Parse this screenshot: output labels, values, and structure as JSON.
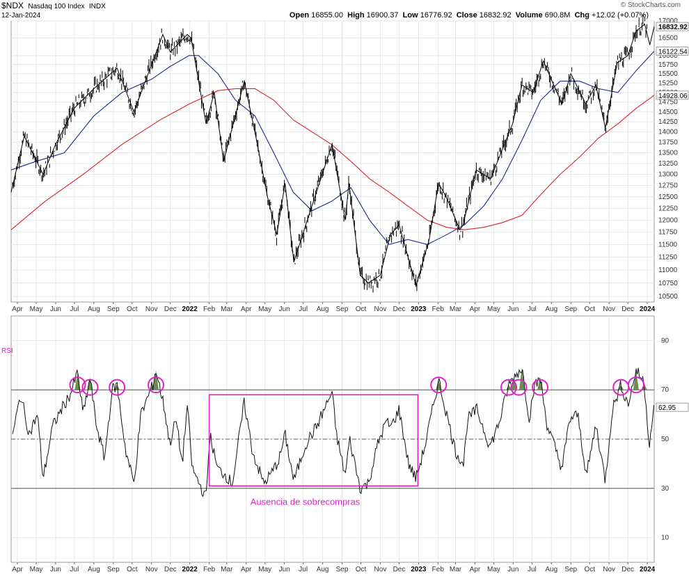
{
  "header": {
    "symbol": "$NDX",
    "name": "Nasdaq 100 Index",
    "exchange": "INDX",
    "date": "12-Jan-2024",
    "brand": "© StockCharts.com",
    "open_label": "Open",
    "open": "16855.00",
    "high_label": "High",
    "high": "16900.37",
    "low_label": "Low",
    "low": "16776.92",
    "close_label": "Close",
    "close": "16832.92",
    "volume_label": "Volume",
    "volume": "690.8M",
    "chg_label": "Chg",
    "chg": "+12.02 (+0.07%)"
  },
  "colors": {
    "price": "#000000",
    "ma50": "#1c2a8a",
    "ma200": "#d8232a",
    "annotation": "#e020c8",
    "grid": "#e6e6e6",
    "fill_overbought": "#6b8e4e"
  },
  "annotation_text": "Ausencia de sobrecompras",
  "rsi_label": "RSI",
  "x_axis": {
    "labels": [
      "Apr",
      "May",
      "Jun",
      "Jul",
      "Aug",
      "Sep",
      "Oct",
      "Nov",
      "Dec",
      "2022",
      "Feb",
      "Mar",
      "Apr",
      "May",
      "Jun",
      "Jul",
      "Aug",
      "Sep",
      "Oct",
      "Nov",
      "Dec",
      "2023",
      "Feb",
      "Mar",
      "Apr",
      "May",
      "Jun",
      "Jul",
      "Aug",
      "Sep",
      "Oct",
      "Nov",
      "Dec",
      "2024"
    ],
    "bold": [
      "2022",
      "2023",
      "2024"
    ]
  },
  "chart_data": [
    {
      "type": "line",
      "title": "$NDX Nasdaq 100 Index INDX",
      "y_scale": "log",
      "ylim": [
        10400,
        17000
      ],
      "y_ticks": [
        "17000",
        "16500",
        "16000",
        "15750",
        "15500",
        "15250",
        "15000",
        "14750",
        "14500",
        "14250",
        "14000",
        "13750",
        "13500",
        "13250",
        "13000",
        "12750",
        "12500",
        "12250",
        "12000",
        "11750",
        "11500",
        "11250",
        "11000",
        "10750",
        "10500"
      ],
      "last_value_tags": [
        {
          "name": "close",
          "value": "16832.92"
        },
        {
          "name": "ma50",
          "value": "16122.54"
        },
        {
          "name": "ma200",
          "value": "14928.06"
        }
      ],
      "x_range": [
        "2021-03-22",
        "2024-01-12"
      ],
      "series": [
        {
          "name": "",
          "role": "price",
          "points": [
            [
              "2021-03-22",
              12600
            ],
            [
              "2021-04-12",
              13900
            ],
            [
              "2021-05-12",
              13000
            ],
            [
              "2021-06-01",
              13700
            ],
            [
              "2021-07-01",
              14600
            ],
            [
              "2021-08-01",
              15100
            ],
            [
              "2021-09-07",
              15650
            ],
            [
              "2021-10-04",
              14500
            ],
            [
              "2021-11-19",
              16600
            ],
            [
              "2021-12-01",
              16100
            ],
            [
              "2021-12-28",
              16600
            ],
            [
              "2022-01-03",
              16500
            ],
            [
              "2022-01-27",
              14200
            ],
            [
              "2022-02-09",
              15000
            ],
            [
              "2022-02-24",
              13300
            ],
            [
              "2022-03-29",
              15300
            ],
            [
              "2022-04-15",
              14000
            ],
            [
              "2022-05-05",
              12500
            ],
            [
              "2022-05-20",
              11700
            ],
            [
              "2022-06-02",
              12800
            ],
            [
              "2022-06-16",
              11150
            ],
            [
              "2022-07-05",
              11900
            ],
            [
              "2022-08-16",
              13700
            ],
            [
              "2022-09-06",
              12000
            ],
            [
              "2022-09-12",
              12800
            ],
            [
              "2022-09-30",
              10900
            ],
            [
              "2022-10-13",
              10750
            ],
            [
              "2022-11-01",
              10900
            ],
            [
              "2022-11-17",
              11700
            ],
            [
              "2022-12-01",
              11900
            ],
            [
              "2022-12-28",
              10700
            ],
            [
              "2023-01-18",
              11600
            ],
            [
              "2023-02-02",
              12800
            ],
            [
              "2023-02-14",
              12500
            ],
            [
              "2023-03-08",
              11800
            ],
            [
              "2023-03-13",
              11900
            ],
            [
              "2023-04-03",
              13100
            ],
            [
              "2023-04-26",
              12900
            ],
            [
              "2023-05-31",
              14200
            ],
            [
              "2023-06-15",
              15200
            ],
            [
              "2023-07-03",
              15000
            ],
            [
              "2023-07-19",
              15850
            ],
            [
              "2023-08-18",
              14700
            ],
            [
              "2023-09-01",
              15500
            ],
            [
              "2023-09-25",
              14700
            ],
            [
              "2023-10-11",
              15200
            ],
            [
              "2023-10-26",
              14100
            ],
            [
              "2023-11-14",
              15800
            ],
            [
              "2023-12-01",
              16000
            ],
            [
              "2023-12-14",
              16700
            ],
            [
              "2023-12-28",
              16900
            ],
            [
              "2024-01-05",
              16300
            ],
            [
              "2024-01-12",
              16832.92
            ]
          ]
        },
        {
          "name": "",
          "role": "ma50",
          "points": [
            [
              "2021-03-22",
              13100
            ],
            [
              "2021-05-01",
              13300
            ],
            [
              "2021-06-15",
              13500
            ],
            [
              "2021-08-01",
              14400
            ],
            [
              "2021-09-15",
              15000
            ],
            [
              "2021-11-01",
              15350
            ],
            [
              "2021-12-01",
              15700
            ],
            [
              "2021-12-31",
              16000
            ],
            [
              "2022-01-15",
              16000
            ],
            [
              "2022-02-15",
              15500
            ],
            [
              "2022-03-15",
              14800
            ],
            [
              "2022-04-15",
              14400
            ],
            [
              "2022-05-15",
              13500
            ],
            [
              "2022-06-15",
              12600
            ],
            [
              "2022-07-15",
              12200
            ],
            [
              "2022-08-15",
              12400
            ],
            [
              "2022-09-15",
              12700
            ],
            [
              "2022-10-15",
              12000
            ],
            [
              "2022-11-15",
              11500
            ],
            [
              "2022-12-15",
              11600
            ],
            [
              "2023-01-15",
              11500
            ],
            [
              "2023-02-15",
              11700
            ],
            [
              "2023-03-15",
              11900
            ],
            [
              "2023-04-15",
              12300
            ],
            [
              "2023-05-15",
              12900
            ],
            [
              "2023-06-15",
              13800
            ],
            [
              "2023-07-15",
              14800
            ],
            [
              "2023-08-15",
              15300
            ],
            [
              "2023-09-15",
              15300
            ],
            [
              "2023-10-15",
              15100
            ],
            [
              "2023-11-15",
              15000
            ],
            [
              "2023-12-15",
              15600
            ],
            [
              "2024-01-12",
              16122.54
            ]
          ]
        },
        {
          "name": "",
          "role": "ma200",
          "points": [
            [
              "2021-03-22",
              11800
            ],
            [
              "2021-05-15",
              12400
            ],
            [
              "2021-07-15",
              13000
            ],
            [
              "2021-09-15",
              13700
            ],
            [
              "2021-11-15",
              14300
            ],
            [
              "2021-12-31",
              14700
            ],
            [
              "2022-02-15",
              15050
            ],
            [
              "2022-03-15",
              15100
            ],
            [
              "2022-04-15",
              15100
            ],
            [
              "2022-05-15",
              14800
            ],
            [
              "2022-06-15",
              14300
            ],
            [
              "2022-07-15",
              14000
            ],
            [
              "2022-08-15",
              13700
            ],
            [
              "2022-09-15",
              13300
            ],
            [
              "2022-10-15",
              12900
            ],
            [
              "2022-11-15",
              12600
            ],
            [
              "2022-12-15",
              12300
            ],
            [
              "2023-01-15",
              12000
            ],
            [
              "2023-02-15",
              11850
            ],
            [
              "2023-03-15",
              11800
            ],
            [
              "2023-04-15",
              11850
            ],
            [
              "2023-05-15",
              11950
            ],
            [
              "2023-06-15",
              12100
            ],
            [
              "2023-07-15",
              12550
            ],
            [
              "2023-08-15",
              13000
            ],
            [
              "2023-09-15",
              13400
            ],
            [
              "2023-10-15",
              13850
            ],
            [
              "2023-11-15",
              14200
            ],
            [
              "2023-12-15",
              14600
            ],
            [
              "2024-01-12",
              14928.06
            ]
          ]
        }
      ]
    },
    {
      "type": "line",
      "ylim": [
        0,
        100
      ],
      "y_ticks": [
        "90",
        "70",
        "50",
        "30",
        "10"
      ],
      "levels": [
        70,
        50,
        30
      ],
      "last_value_tags": [
        {
          "name": "rsi",
          "value": "62.95"
        }
      ],
      "x_range": [
        "2021-03-22",
        "2024-01-12"
      ],
      "series": [
        {
          "name": "",
          "role": "rsi",
          "points": [
            [
              "2021-03-22",
              48
            ],
            [
              "2021-04-06",
              68
            ],
            [
              "2021-04-20",
              52
            ],
            [
              "2021-05-03",
              60
            ],
            [
              "2021-05-12",
              34
            ],
            [
              "2021-05-27",
              55
            ],
            [
              "2021-06-10",
              62
            ],
            [
              "2021-06-24",
              68
            ],
            [
              "2021-07-06",
              77
            ],
            [
              "2021-07-15",
              60
            ],
            [
              "2021-07-26",
              75
            ],
            [
              "2021-08-04",
              57
            ],
            [
              "2021-08-18",
              42
            ],
            [
              "2021-08-30",
              70
            ],
            [
              "2021-09-07",
              72
            ],
            [
              "2021-09-21",
              45
            ],
            [
              "2021-10-04",
              32
            ],
            [
              "2021-10-15",
              60
            ],
            [
              "2021-11-03",
              72
            ],
            [
              "2021-11-08",
              78
            ],
            [
              "2021-11-22",
              62
            ],
            [
              "2021-11-30",
              48
            ],
            [
              "2021-12-10",
              58
            ],
            [
              "2021-12-20",
              40
            ],
            [
              "2021-12-28",
              64
            ],
            [
              "2022-01-05",
              38
            ],
            [
              "2022-01-27",
              26
            ],
            [
              "2022-02-02",
              52
            ],
            [
              "2022-02-14",
              38
            ],
            [
              "2022-02-25",
              36
            ],
            [
              "2022-03-10",
              32
            ],
            [
              "2022-03-29",
              65
            ],
            [
              "2022-04-11",
              45
            ],
            [
              "2022-04-29",
              32
            ],
            [
              "2022-05-11",
              36
            ],
            [
              "2022-05-24",
              42
            ],
            [
              "2022-06-02",
              52
            ],
            [
              "2022-06-16",
              33
            ],
            [
              "2022-07-05",
              48
            ],
            [
              "2022-07-22",
              55
            ],
            [
              "2022-08-16",
              69
            ],
            [
              "2022-08-23",
              52
            ],
            [
              "2022-09-06",
              35
            ],
            [
              "2022-09-13",
              50
            ],
            [
              "2022-09-30",
              30
            ],
            [
              "2022-10-13",
              32
            ],
            [
              "2022-10-28",
              48
            ],
            [
              "2022-11-10",
              57
            ],
            [
              "2022-11-18",
              55
            ],
            [
              "2022-12-01",
              62
            ],
            [
              "2022-12-16",
              40
            ],
            [
              "2022-12-28",
              34
            ],
            [
              "2023-01-12",
              48
            ],
            [
              "2023-02-02",
              74
            ],
            [
              "2023-02-15",
              60
            ],
            [
              "2023-03-01",
              45
            ],
            [
              "2023-03-14",
              40
            ],
            [
              "2023-03-20",
              58
            ],
            [
              "2023-04-04",
              62
            ],
            [
              "2023-04-25",
              47
            ],
            [
              "2023-05-10",
              57
            ],
            [
              "2023-05-25",
              72
            ],
            [
              "2023-06-02",
              75
            ],
            [
              "2023-06-15",
              79
            ],
            [
              "2023-06-27",
              58
            ],
            [
              "2023-07-03",
              70
            ],
            [
              "2023-07-14",
              75
            ],
            [
              "2023-07-25",
              56
            ],
            [
              "2023-08-18",
              38
            ],
            [
              "2023-08-30",
              58
            ],
            [
              "2023-09-12",
              60
            ],
            [
              "2023-09-26",
              35
            ],
            [
              "2023-10-11",
              56
            ],
            [
              "2023-10-26",
              33
            ],
            [
              "2023-11-06",
              62
            ],
            [
              "2023-11-20",
              72
            ],
            [
              "2023-12-01",
              64
            ],
            [
              "2023-12-07",
              70
            ],
            [
              "2023-12-14",
              78
            ],
            [
              "2023-12-27",
              73
            ],
            [
              "2024-01-04",
              48
            ],
            [
              "2024-01-12",
              62.95
            ]
          ]
        }
      ],
      "highlights": [
        {
          "kind": "circle",
          "at": "2021-07-06",
          "level": 72
        },
        {
          "kind": "circle",
          "at": "2021-07-26",
          "level": 71
        },
        {
          "kind": "circle",
          "at": "2021-09-07",
          "level": 71
        },
        {
          "kind": "circle",
          "at": "2021-11-08",
          "level": 72
        },
        {
          "kind": "circle",
          "at": "2023-02-02",
          "level": 72
        },
        {
          "kind": "circle",
          "at": "2023-05-25",
          "level": 71
        },
        {
          "kind": "circle",
          "at": "2023-06-10",
          "level": 71
        },
        {
          "kind": "circle",
          "at": "2023-07-14",
          "level": 71
        },
        {
          "kind": "circle",
          "at": "2023-11-20",
          "level": 71
        },
        {
          "kind": "circle",
          "at": "2023-12-14",
          "level": 72
        },
        {
          "kind": "rectangle",
          "from": "2022-02-01",
          "to": "2022-12-31",
          "top": 68,
          "bottom": 31
        }
      ]
    }
  ]
}
